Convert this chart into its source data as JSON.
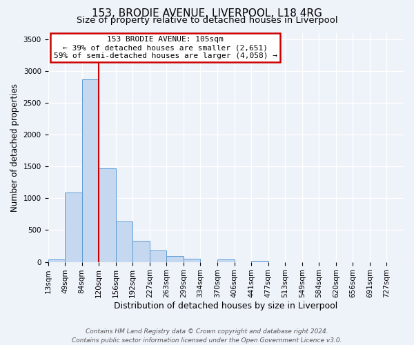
{
  "title": "153, BRODIE AVENUE, LIVERPOOL, L18 4RG",
  "subtitle": "Size of property relative to detached houses in Liverpool",
  "xlabel": "Distribution of detached houses by size in Liverpool",
  "ylabel": "Number of detached properties",
  "bar_color": "#c5d8f0",
  "bar_edge_color": "#5b9bd5",
  "bin_labels": [
    "13sqm",
    "49sqm",
    "84sqm",
    "120sqm",
    "156sqm",
    "192sqm",
    "227sqm",
    "263sqm",
    "299sqm",
    "334sqm",
    "370sqm",
    "406sqm",
    "441sqm",
    "477sqm",
    "513sqm",
    "549sqm",
    "584sqm",
    "620sqm",
    "656sqm",
    "691sqm",
    "727sqm"
  ],
  "bar_heights": [
    40,
    1090,
    2870,
    1470,
    630,
    330,
    185,
    95,
    55,
    0,
    35,
    0,
    15,
    0,
    0,
    0,
    0,
    0,
    0,
    0,
    0
  ],
  "ylim": [
    0,
    3600
  ],
  "yticks": [
    0,
    500,
    1000,
    1500,
    2000,
    2500,
    3000,
    3500
  ],
  "annotation_title": "153 BRODIE AVENUE: 105sqm",
  "annotation_line1": "← 39% of detached houses are smaller (2,651)",
  "annotation_line2": "59% of semi-detached houses are larger (4,058) →",
  "vline_color": "#cc0000",
  "annotation_box_edge_color": "#cc0000",
  "footer_line1": "Contains HM Land Registry data © Crown copyright and database right 2024.",
  "footer_line2": "Contains public sector information licensed under the Open Government Licence v3.0.",
  "background_color": "#eef2f9",
  "plot_bg_color": "#eef2f9",
  "grid_color": "#ffffff",
  "title_fontsize": 11,
  "subtitle_fontsize": 9.5,
  "xlabel_fontsize": 9,
  "ylabel_fontsize": 8.5,
  "tick_fontsize": 7.5,
  "footer_fontsize": 6.5
}
